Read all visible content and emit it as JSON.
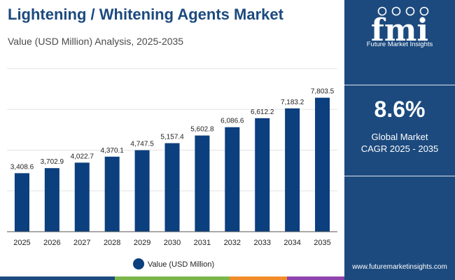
{
  "header": {
    "title": "Lightening / Whitening Agents Market",
    "subtitle": "Value (USD Million) Analysis, 2025-2035"
  },
  "sidebar": {
    "brand": "Future Market Insights",
    "logo_text": "fmi",
    "cagr_value": "8.6%",
    "cagr_caption_line1": "Global Market",
    "cagr_caption_line2": "CAGR 2025 - 2035",
    "website": "www.futuremarketinsights.com"
  },
  "colors": {
    "bar": "#0b3f7e",
    "title": "#1c4a7e",
    "sidebar_bg": "#1c4a7e",
    "strip": [
      "#1c4a7e",
      "#7ab648",
      "#f28c28",
      "#8e44ad"
    ]
  },
  "chart_data": {
    "type": "bar",
    "categories": [
      "2025",
      "2026",
      "2027",
      "2028",
      "2029",
      "2030",
      "2031",
      "2032",
      "2033",
      "2034",
      "2035"
    ],
    "series": [
      {
        "name": "Value (USD Million)",
        "values": [
          3408.6,
          3702.9,
          4022.7,
          4370.1,
          4747.5,
          5157.4,
          5602.8,
          6086.6,
          6612.2,
          7183.2,
          7803.5
        ]
      }
    ],
    "value_labels": [
      "3,408.6",
      "3,702.9",
      "4,022.7",
      "4,370.1",
      "4,747.5",
      "5,157.4",
      "5,602.8",
      "6,086.6",
      "6,612.2",
      "7,183.2",
      "7,803.5"
    ],
    "ylim": [
      0,
      9500
    ],
    "grid": true,
    "legend": "bottom-center",
    "xlabel": "",
    "ylabel": ""
  }
}
